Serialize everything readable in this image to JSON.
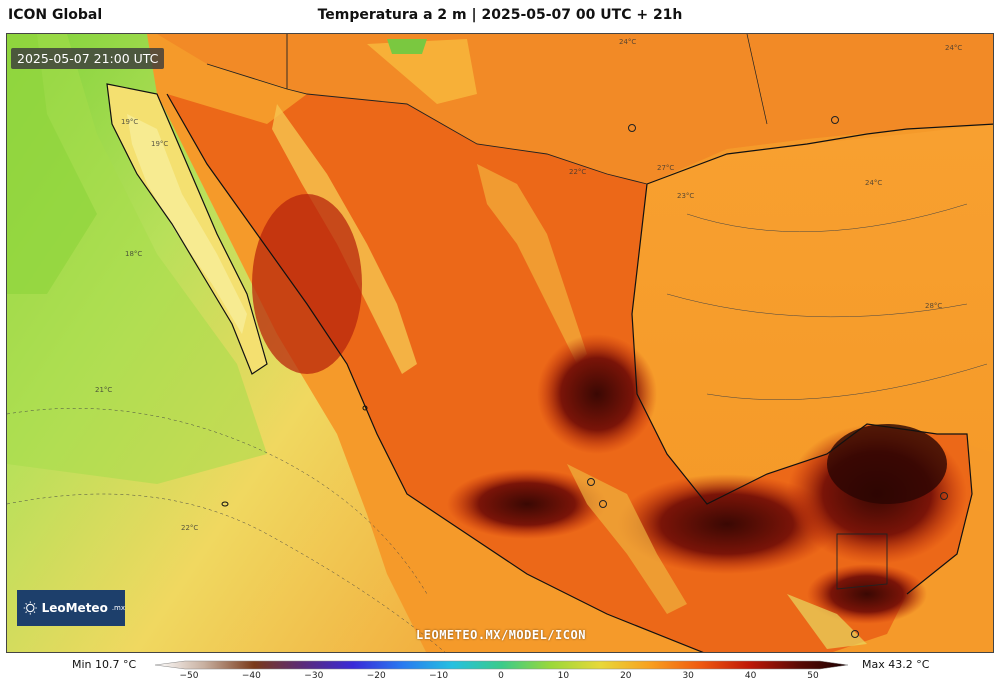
{
  "header": {
    "model_name": "ICON Global",
    "title": "Temperatura a 2 m | 2025-05-07 00 UTC + 21h"
  },
  "map": {
    "valid_time": "2025-05-07 21:00 UTC",
    "watermark": "LEOMETEO.MX/MODEL/ICON",
    "logo": {
      "icon": "sun-icon",
      "brand": "LeoMeteo",
      "suffix": ".mx"
    },
    "contour_labels": [
      "24°C",
      "19°C",
      "18°C",
      "21°C",
      "22°C",
      "24°C",
      "27°C",
      "23°C",
      "24°C",
      "28°C",
      "19°C",
      "22°C"
    ]
  },
  "legend": {
    "min_label": "Min 10.7 °C",
    "max_label": "Max 43.2 °C",
    "ticks": [
      "−50",
      "−40",
      "−30",
      "−20",
      "−10",
      "0",
      "10",
      "20",
      "30",
      "40",
      "50"
    ],
    "colors": [
      "#ffffff",
      "#c8b0a0",
      "#7a3a1a",
      "#5a2a7a",
      "#3a2ad8",
      "#2a7af0",
      "#25c0e0",
      "#3acb8a",
      "#9ad83a",
      "#e8d83a",
      "#f8a020",
      "#f05a10",
      "#c01808",
      "#5a0a05",
      "#1a0000"
    ]
  }
}
